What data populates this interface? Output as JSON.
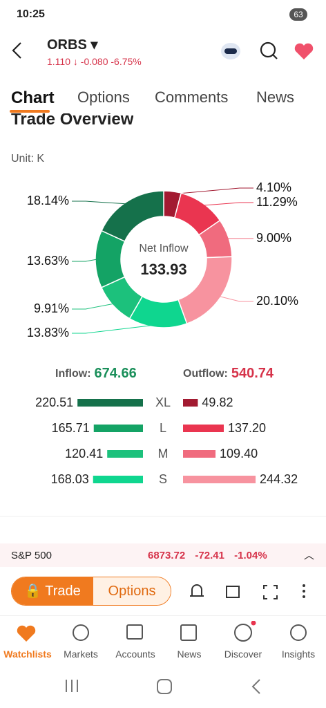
{
  "status_bar": {
    "time": "10:25",
    "battery": "63"
  },
  "header": {
    "ticker": "ORBS",
    "price": "1.110",
    "change": "-0.080",
    "change_percent": "-6.75%"
  },
  "tabs": [
    "Chart",
    "Options",
    "Comments",
    "News"
  ],
  "section": {
    "title": "Trade Overview",
    "unit": "Unit: K"
  },
  "donut": {
    "type": "pie",
    "center_label": "Net Inflow",
    "center_value": "133.93",
    "values": [
      4.1,
      11.29,
      9,
      20.1,
      13.83,
      9.91,
      13.63,
      18.14
    ],
    "value_labels": [
      "4.10%",
      "11.29%",
      "9.00%",
      "20.10%",
      "13.83%",
      "9.91%",
      "13.63%",
      "18.14%"
    ],
    "colors": [
      "#a21a31",
      "#ea3550",
      "#f06b7e",
      "#f7939f",
      "#0fd68f",
      "#1cc17c",
      "#14a365",
      "#15714b"
    ]
  },
  "flow": {
    "inflow_label": "Inflow:",
    "inflow_total": "674.66",
    "outflow_label": "Outflow:",
    "outflow_total": "540.74",
    "sizes": [
      "XL",
      "L",
      "M",
      "S"
    ],
    "inflow_values": [
      220.51,
      165.71,
      120.41,
      168.03
    ],
    "inflow_colors": [
      "#15714b",
      "#14a365",
      "#1cc17c",
      "#0fd68f"
    ],
    "outflow_values": [
      49.82,
      137.2,
      109.4,
      244.32
    ],
    "outflow_value_labels": [
      "49.82",
      "137.20",
      "109.40",
      "244.32"
    ],
    "outflow_colors": [
      "#a21a31",
      "#ea3550",
      "#f06b7e",
      "#f7939f"
    ]
  },
  "index_bar": {
    "name": "S&P 500",
    "price": "6873.72",
    "change": "-72.41",
    "change_percent": "-1.04%"
  },
  "actions": {
    "trade": "Trade",
    "options": "Options"
  },
  "nav": [
    "Watchlists",
    "Markets",
    "Accounts",
    "News",
    "Discover",
    "Insights"
  ]
}
